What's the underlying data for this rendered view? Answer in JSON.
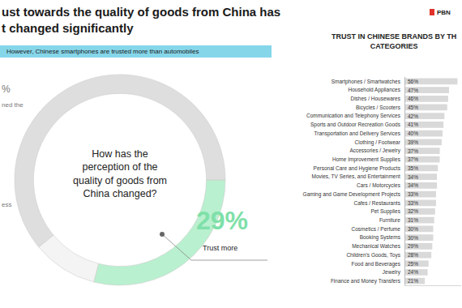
{
  "header": {
    "title": [
      "ust towards the quality of goods from China has",
      "t changed significantly"
    ],
    "subtitle": "However, Chinese smartphones are trusted more than automobiles",
    "logo": "PBN"
  },
  "chart_data": [
    {
      "type": "pie",
      "title": [
        "How has the",
        "perception of the",
        "quality of goods from",
        "China changed?"
      ],
      "categories": [
        "Trust more",
        null,
        null
      ],
      "values": [
        29,
        10,
        61
      ],
      "value_labels": [
        "29%",
        null,
        null
      ],
      "colors": [
        "#b9f0cf",
        "#f4f4f4",
        "#dedede"
      ],
      "annotations": [
        "%",
        "ned the",
        "ess"
      ]
    },
    {
      "type": "bar",
      "orientation": "horizontal",
      "title": [
        "TRUST IN CHINESE BRANDS BY TH",
        "CATEGORIES"
      ],
      "categories": [
        "Smartphones / Smartwatches",
        "Household Appliances",
        "Dishes / Housewares",
        "Bicycles / Scooters",
        "Communication and Telephony Services",
        "Sports and Outdoor Recreation Goods",
        "Transportation and Delivery Services",
        "Clothing / Footwear",
        "Accessories / Jewelry",
        "Home Improvement Supplies",
        "Personal Care and Hygiene Products",
        "Movies, TV Series, and Entertainment",
        "Cars / Motorcycles",
        "Gaming and Game Development Projects",
        "Cafes / Restaurants",
        "Pet Supplies",
        "Furniture",
        "Cosmetics / Perfume",
        "Booking Systems",
        "Mechanical Watches",
        "Children's Goods, Toys",
        "Food and Beverages",
        "Jewelry",
        "Finance and Money Transfers"
      ],
      "values": [
        56,
        47,
        46,
        45,
        42,
        41,
        40,
        39,
        37,
        37,
        35,
        34,
        34,
        33,
        33,
        32,
        31,
        30,
        30,
        29,
        28,
        25,
        24,
        21
      ],
      "value_labels": [
        "56%",
        "47%",
        "46%",
        "45%",
        "42%",
        "41%",
        "40%",
        "39%",
        "37%",
        "37%",
        "35%",
        "34%",
        "34%",
        "33%",
        "33%",
        "32%",
        "31%",
        "30%",
        "30%",
        "29%",
        "28%",
        "25%",
        "24%",
        "21%"
      ],
      "data_labels": true,
      "color": "#d9d9d9",
      "xlim": [
        0,
        60
      ],
      "xticks": [],
      "tick_labels": "y",
      "grid": false
    }
  ]
}
